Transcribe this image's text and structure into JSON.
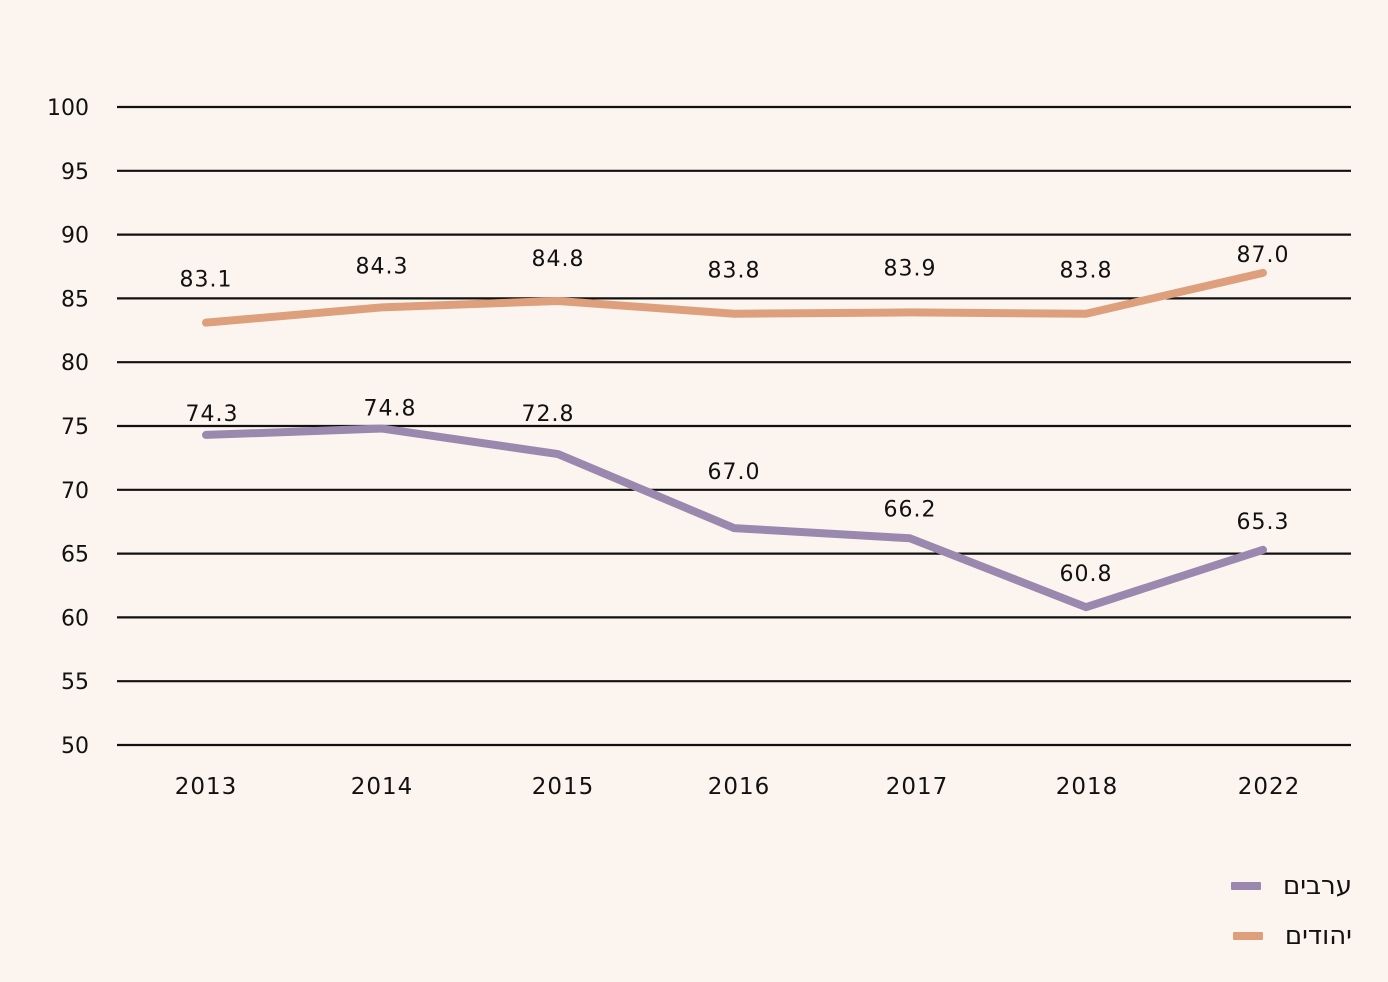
{
  "chart_data": {
    "type": "line",
    "title": "",
    "xlabel": "",
    "ylabel": "",
    "categories": [
      "2013",
      "2014",
      "2015",
      "2016",
      "2017",
      "2018",
      "2022"
    ],
    "ylim": [
      50,
      100
    ],
    "yticks": [
      "50",
      "55",
      "60",
      "65",
      "70",
      "75",
      "80",
      "85",
      "90",
      "95",
      "100"
    ],
    "grid": true,
    "legend_position": "bottom-right",
    "series": [
      {
        "name": "יהודים",
        "color": "#dea07c",
        "values": [
          83.1,
          84.3,
          84.8,
          83.8,
          83.9,
          83.8,
          87.0
        ],
        "labels": [
          "83.1",
          "84.3",
          "84.8",
          "83.8",
          "83.9",
          "83.8",
          "87.0"
        ]
      },
      {
        "name": "ערבים",
        "color": "#9a88ae",
        "values": [
          74.3,
          74.8,
          72.8,
          67.0,
          66.2,
          60.8,
          65.3
        ],
        "labels": [
          "74.3",
          "74.8",
          "72.8",
          "67.0",
          "66.2",
          "60.8",
          "65.3"
        ]
      }
    ]
  },
  "legend": {
    "items": [
      {
        "label": "ערבים",
        "color": "#9a88ae"
      },
      {
        "label": "יהודים",
        "color": "#dea07c"
      }
    ]
  },
  "colors": {
    "background": "#fcf5ef",
    "gridline": "#111111",
    "text": "#111111"
  }
}
